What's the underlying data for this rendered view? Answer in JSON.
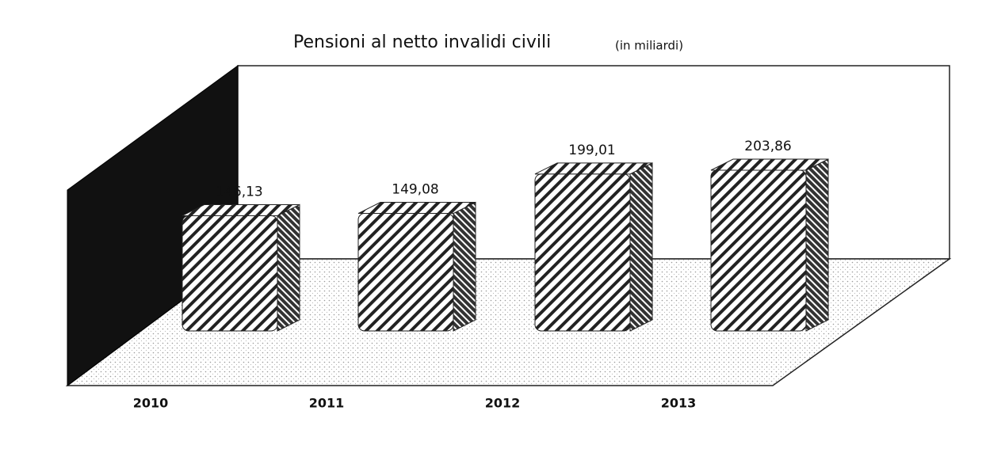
{
  "chart_data": {
    "type": "bar3d",
    "title": "Pensioni al netto  invalidi civili",
    "subtitle": "(in miliardi)",
    "categories": [
      "2010",
      "2011",
      "2012",
      "2013"
    ],
    "values": [
      146.13,
      149.08,
      199.01,
      203.86
    ],
    "value_labels": [
      "146,13",
      "149,08",
      "199,01",
      "203,86"
    ]
  }
}
